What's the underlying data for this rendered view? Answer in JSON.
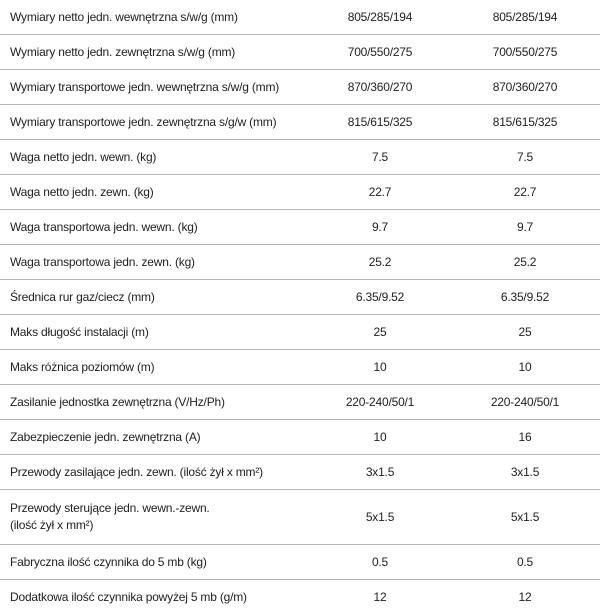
{
  "table": {
    "rows": [
      [
        "Wymiary netto jedn. wewnętrzna s/w/g (mm)",
        "805/285/194",
        "805/285/194"
      ],
      [
        "Wymiary netto jedn. zewnętrzna s/w/g (mm)",
        "700/550/275",
        "700/550/275"
      ],
      [
        "Wymiary transportowe jedn. wewnętrzna s/w/g (mm)",
        "870/360/270",
        "870/360/270"
      ],
      [
        "Wymiary transportowe jedn. zewnętrzna s/g/w (mm)",
        "815/615/325",
        "815/615/325"
      ],
      [
        "Waga netto jedn. wewn. (kg)",
        "7.5",
        "7.5"
      ],
      [
        "Waga netto jedn. zewn. (kg)",
        "22.7",
        "22.7"
      ],
      [
        "Waga transportowa jedn. wewn. (kg)",
        "9.7",
        "9.7"
      ],
      [
        "Waga transportowa jedn. zewn. (kg)",
        "25.2",
        "25.2"
      ],
      [
        "Średnica rur gaz/ciecz (mm)",
        "6.35/9.52",
        "6.35/9.52"
      ],
      [
        "Maks długość instalacji (m)",
        "25",
        "25"
      ],
      [
        "Maks różnica poziomów (m)",
        "10",
        "10"
      ],
      [
        "Zasilanie jednostka zewnętrzna (V/Hz/Ph)",
        "220-240/50/1",
        "220-240/50/1"
      ],
      [
        "Zabezpieczenie jedn. zewnętrzna (A)",
        "10",
        "16"
      ],
      [
        "Przewody zasilające jedn. zewn. (ilość żył x mm²)",
        "3x1.5",
        "3x1.5"
      ],
      [
        "Przewody sterujące jedn. wewn.-zewn.\n(ilość żył x mm²)",
        "5x1.5",
        "5x1.5"
      ],
      [
        "Fabryczna ilość czynnika do 5 mb (kg)",
        "0.5",
        "0.5"
      ],
      [
        "Dodatkowa ilość czynnika powyżej 5 mb  (g/m)",
        "12",
        "12"
      ]
    ]
  }
}
